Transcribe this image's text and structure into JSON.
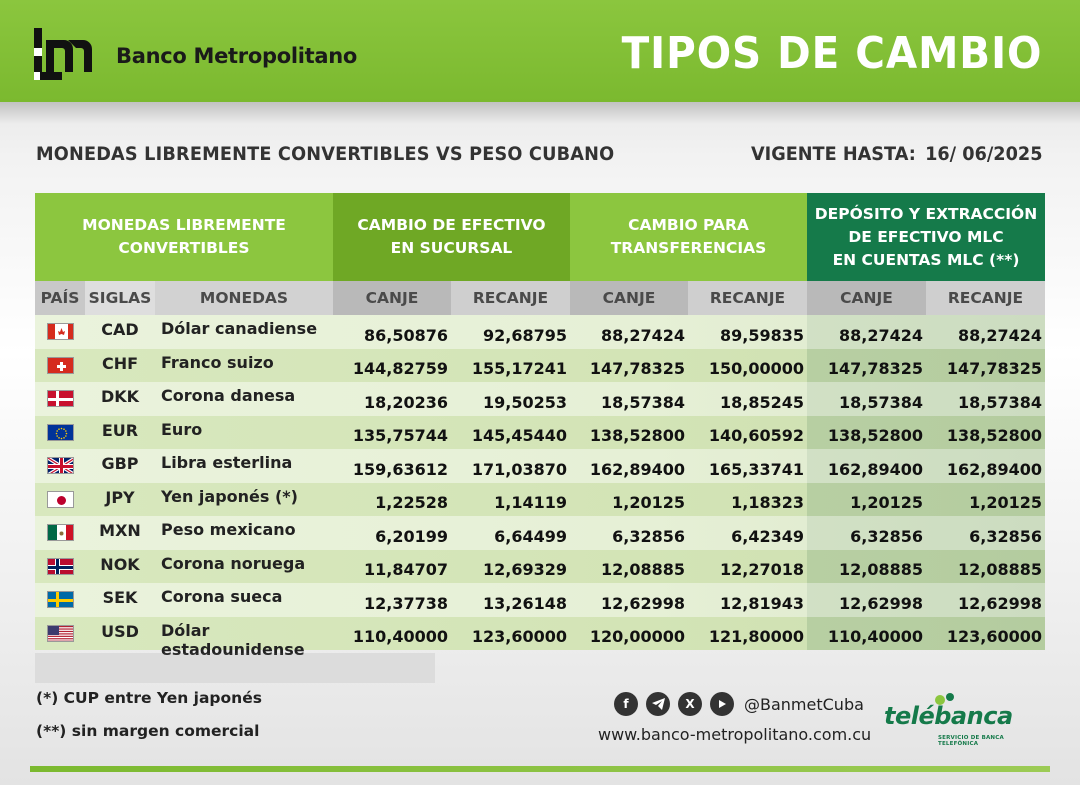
{
  "header": {
    "bank_name": "Banco Metropolitano",
    "title": "TIPOS DE CAMBIO"
  },
  "subtitle": "MONEDAS LIBREMENTE CONVERTIBLES VS PESO CUBANO",
  "valid": {
    "label": "VIGENTE HASTA:",
    "date": "16/ 06/2025"
  },
  "table": {
    "groups": {
      "monedas": "MONEDAS LIBREMENTE\nCONVERTIBLES",
      "efectivo": "CAMBIO DE EFECTIVO\nEN SUCURSAL",
      "transferencias": "CAMBIO PARA\nTRANSFERENCIAS",
      "mlc": "DEPÓSITO Y EXTRACCIÓN\nDE EFECTIVO MLC\nEN CUENTAS MLC (**)"
    },
    "subheaders": {
      "pais": "PAÍS",
      "siglas": "SIGLAS",
      "monedas": "MONEDAS",
      "canje1": "CANJE",
      "recanje1": "RECANJE",
      "canje2": "CANJE",
      "recanje2": "RECANJE",
      "canje3": "CANJE",
      "recanje3": "RECANJE"
    },
    "rows": [
      {
        "flag": "canada-flag",
        "code": "CAD",
        "name": "Dólar canadiense",
        "ef_canje": "86,50876",
        "ef_recanje": "92,68795",
        "tr_canje": "88,27424",
        "tr_recanje": "89,59835",
        "mlc_canje": "88,27424",
        "mlc_recanje": "88,27424"
      },
      {
        "flag": "switzerland-flag",
        "code": "CHF",
        "name": "Franco suizo",
        "ef_canje": "144,82759",
        "ef_recanje": "155,17241",
        "tr_canje": "147,78325",
        "tr_recanje": "150,00000",
        "mlc_canje": "147,78325",
        "mlc_recanje": "147,78325"
      },
      {
        "flag": "denmark-flag",
        "code": "DKK",
        "name": "Corona danesa",
        "ef_canje": "18,20236",
        "ef_recanje": "19,50253",
        "tr_canje": "18,57384",
        "tr_recanje": "18,85245",
        "mlc_canje": "18,57384",
        "mlc_recanje": "18,57384"
      },
      {
        "flag": "eu-flag",
        "code": "EUR",
        "name": "Euro",
        "ef_canje": "135,75744",
        "ef_recanje": "145,45440",
        "tr_canje": "138,52800",
        "tr_recanje": "140,60592",
        "mlc_canje": "138,52800",
        "mlc_recanje": "138,52800"
      },
      {
        "flag": "uk-flag",
        "code": "GBP",
        "name": "Libra esterlina",
        "ef_canje": "159,63612",
        "ef_recanje": "171,03870",
        "tr_canje": "162,89400",
        "tr_recanje": "165,33741",
        "mlc_canje": "162,89400",
        "mlc_recanje": "162,89400"
      },
      {
        "flag": "japan-flag",
        "code": "JPY",
        "name": "Yen japonés (*)",
        "ef_canje": "1,22528",
        "ef_recanje": "1,14119",
        "tr_canje": "1,20125",
        "tr_recanje": "1,18323",
        "mlc_canje": "1,20125",
        "mlc_recanje": "1,20125"
      },
      {
        "flag": "mexico-flag",
        "code": "MXN",
        "name": "Peso mexicano",
        "ef_canje": "6,20199",
        "ef_recanje": "6,64499",
        "tr_canje": "6,32856",
        "tr_recanje": "6,42349",
        "mlc_canje": "6,32856",
        "mlc_recanje": "6,32856"
      },
      {
        "flag": "norway-flag",
        "code": "NOK",
        "name": "Corona noruega",
        "ef_canje": "11,84707",
        "ef_recanje": "12,69329",
        "tr_canje": "12,08885",
        "tr_recanje": "12,27018",
        "mlc_canje": "12,08885",
        "mlc_recanje": "12,08885"
      },
      {
        "flag": "sweden-flag",
        "code": "SEK",
        "name": "Corona sueca",
        "ef_canje": "12,37738",
        "ef_recanje": "13,26148",
        "tr_canje": "12,62998",
        "tr_recanje": "12,81943",
        "mlc_canje": "12,62998",
        "mlc_recanje": "12,62998"
      },
      {
        "flag": "usa-flag",
        "code": "USD",
        "name": "Dólar estadounidense",
        "ef_canje": "110,40000",
        "ef_recanje": "123,60000",
        "tr_canje": "120,00000",
        "tr_recanje": "121,80000",
        "mlc_canje": "110,40000",
        "mlc_recanje": "123,60000"
      }
    ]
  },
  "footer": {
    "note1": "(*) CUP entre Yen japonés",
    "note2": "(**) sin margen comercial",
    "handle": "@BanmetCuba",
    "website": "www.banco-metropolitano.com.cu",
    "telebanca": "telébanca",
    "telebanca_sub": "SERVICIO DE BANCA TELEFÓNICA",
    "social_icons": [
      "facebook-icon",
      "telegram-icon",
      "x-icon",
      "youtube-icon"
    ]
  },
  "colors": {
    "brand_green": "#8cc63f",
    "dark_green": "#157a4a",
    "mid_green": "#6fa825"
  }
}
